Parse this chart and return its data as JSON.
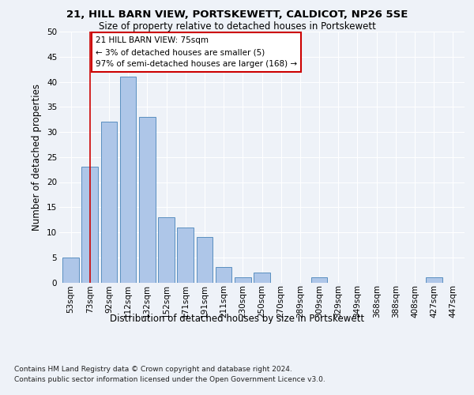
{
  "title1": "21, HILL BARN VIEW, PORTSKEWETT, CALDICOT, NP26 5SE",
  "title2": "Size of property relative to detached houses in Portskewett",
  "xlabel": "Distribution of detached houses by size in Portskewett",
  "ylabel": "Number of detached properties",
  "categories": [
    "53sqm",
    "73sqm",
    "92sqm",
    "112sqm",
    "132sqm",
    "152sqm",
    "171sqm",
    "191sqm",
    "211sqm",
    "230sqm",
    "250sqm",
    "270sqm",
    "289sqm",
    "309sqm",
    "329sqm",
    "349sqm",
    "368sqm",
    "388sqm",
    "408sqm",
    "427sqm",
    "447sqm"
  ],
  "values": [
    5,
    23,
    32,
    41,
    33,
    13,
    11,
    9,
    3,
    1,
    2,
    0,
    0,
    1,
    0,
    0,
    0,
    0,
    0,
    1,
    0
  ],
  "bar_color": "#aec6e8",
  "bar_edge_color": "#5a8fc0",
  "annotation_text_line1": "21 HILL BARN VIEW: 75sqm",
  "annotation_text_line2": "← 3% of detached houses are smaller (5)",
  "annotation_text_line3": "97% of semi-detached houses are larger (168) →",
  "annotation_box_color": "#ffffff",
  "annotation_box_edge_color": "#cc0000",
  "vline_color": "#cc0000",
  "footnote1": "Contains HM Land Registry data © Crown copyright and database right 2024.",
  "footnote2": "Contains public sector information licensed under the Open Government Licence v3.0.",
  "ylim": [
    0,
    50
  ],
  "yticks": [
    0,
    5,
    10,
    15,
    20,
    25,
    30,
    35,
    40,
    45,
    50
  ],
  "bg_color": "#eef2f8",
  "plot_bg_color": "#eef2f8",
  "grid_color": "#ffffff",
  "title1_fontsize": 9.5,
  "title2_fontsize": 8.5,
  "ylabel_fontsize": 8.5,
  "xlabel_fontsize": 8.5,
  "tick_fontsize": 7.5,
  "annotation_fontsize": 7.5,
  "footnote_fontsize": 6.5
}
